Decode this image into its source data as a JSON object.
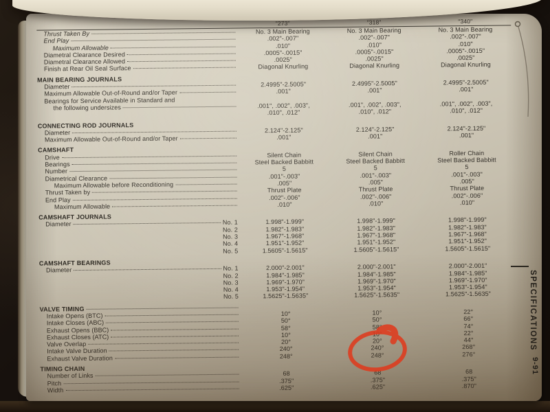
{
  "page": {
    "side_label": "SPECIFICATIONS",
    "page_number": "9-91"
  },
  "table": {
    "columns": [
      "\"273\"",
      "\"318\"",
      "\"340\""
    ],
    "sections": [
      {
        "title": null,
        "rows": [
          {
            "label": "Thrust Taken By",
            "italic": true,
            "dots": true,
            "values": [
              "No. 3 Main Bearing",
              "No. 3 Main Bearing",
              "No. 3 Main Bearing"
            ]
          },
          {
            "label": "End Play",
            "italic": true,
            "dots": true,
            "values": [
              ".002\"-.007\"",
              ".002\"-.007\"",
              ".002\"-.007\""
            ]
          },
          {
            "label": "Maximum Allowable",
            "italic": true,
            "indent": 2,
            "dots": true,
            "values": [
              ".010\"",
              ".010\"",
              ".010\""
            ]
          },
          {
            "label": "Diametral Clearance Desired",
            "dots": true,
            "values": [
              ".0005\"-.0015\"",
              ".0005\"-.0015\"",
              ".0005\"-.0015\""
            ]
          },
          {
            "label": "Diametral Clearance Allowed",
            "dots": true,
            "values": [
              ".0025\"",
              ".0025\"",
              ".0025\""
            ]
          },
          {
            "label": "Finish at Rear Oil Seal Surface",
            "dots": true,
            "values": [
              "Diagonal Knurling",
              "Diagonal Knurling",
              "Diagonal Knurling"
            ]
          }
        ]
      },
      {
        "title": "MAIN BEARING JOURNALS",
        "rows": [
          {
            "label": "Diameter",
            "dots": true,
            "values": [
              "2.4995\"-2.5005\"",
              "2.4995\"-2.5005\"",
              "2.4995\"-2.5005\""
            ]
          },
          {
            "label": "Maximum Allowable Out-of-Round and/or Taper",
            "dots": true,
            "values": [
              ".001\"",
              ".001\"",
              ".001\""
            ]
          },
          {
            "label": "Bearings for Service Available in Standard and",
            "dots": false,
            "values": [
              "",
              "",
              ""
            ]
          },
          {
            "label": "the following undersizes",
            "indent": 2,
            "dots": true,
            "twoline": true,
            "values": [
              ".001\", .002\", .003\",\n.010\", .012\"",
              ".001\", .002\", .003\",\n.010\", .012\"",
              ".001\", .002\", .003\",\n.010\", .012\""
            ]
          }
        ]
      },
      {
        "title": "CONNECTING ROD JOURNALS",
        "rows": [
          {
            "label": "Diameter",
            "dots": true,
            "values": [
              "2.124\"-2.125\"",
              "2.124\"-2.125\"",
              "2.124\"-2.125\""
            ]
          },
          {
            "label": "Maximum Allowable Out-of-Round and/or Taper",
            "dots": true,
            "values": [
              ".001\"",
              ".001\"",
              ".001\""
            ]
          }
        ]
      },
      {
        "title": "CAMSHAFT",
        "rows": [
          {
            "label": "Drive",
            "dots": true,
            "values": [
              "Silent Chain",
              "Silent Chain",
              "Roller Chain"
            ]
          },
          {
            "label": "Bearings",
            "dots": true,
            "values": [
              "Steel Backed Babbitt",
              "Steel Backed Babbitt",
              "Steel Backed Babbitt"
            ]
          },
          {
            "label": "Number",
            "dots": true,
            "values": [
              "5",
              "5",
              "5"
            ]
          },
          {
            "label": "Diametrical Clearance",
            "dots": true,
            "values": [
              ".001\"-.003\"",
              ".001\"-.003\"",
              ".001\"-.003\""
            ]
          },
          {
            "label": "Maximum Allowable before Reconditioning",
            "indent": 2,
            "dots": true,
            "values": [
              ".005\"",
              ".005\"",
              ".005\""
            ]
          },
          {
            "label": "Thrust Taken by",
            "dots": true,
            "values": [
              "Thrust Plate",
              "Thrust Plate",
              "Thrust Plate"
            ]
          },
          {
            "label": "End Play",
            "dots": true,
            "values": [
              ".002\"-.006\"",
              ".002\"-.006\"",
              ".002\"-.006\""
            ]
          },
          {
            "label": "Maximum Allowable",
            "indent": 2,
            "dots": true,
            "values": [
              ".010\"",
              ".010\"",
              ".010\""
            ]
          }
        ]
      },
      {
        "title": "CAMSHAFT JOURNALS",
        "rows": [
          {
            "label": "Diameter",
            "dots": true,
            "no": "No. 1",
            "values": [
              "1.998\"-1.999\"",
              "1.998\"-1.999\"",
              "1.998\"-1.999\""
            ]
          },
          {
            "label": "",
            "dots": false,
            "no": "No. 2",
            "values": [
              "1.982\"-1.983\"",
              "1.982\"-1.983\"",
              "1.982\"-1.983\""
            ]
          },
          {
            "label": "",
            "dots": false,
            "no": "No. 3",
            "values": [
              "1.967\"-1.968\"",
              "1.967\"-1.968\"",
              "1.967\"-1.968\""
            ]
          },
          {
            "label": "",
            "dots": false,
            "no": "No. 4",
            "values": [
              "1.951\"-1.952\"",
              "1.951\"-1.952\"",
              "1.951\"-1.952\""
            ]
          },
          {
            "label": "",
            "dots": false,
            "no": "No. 5",
            "values": [
              "1.5605\"-1.5615\"",
              "1.5605\"-1.5615\"",
              "1.5605\"-1.5615\""
            ]
          }
        ]
      },
      {
        "title": "CAMSHAFT BEARINGS",
        "rows": [
          {
            "label": "Diameter",
            "dots": true,
            "no": "No. 1",
            "values": [
              "2.000\"-2.001\"",
              "2.000\"-2.001\"",
              "2.000\"-2.001\""
            ]
          },
          {
            "label": "",
            "dots": false,
            "no": "No. 2",
            "values": [
              "1.984\"-1.985\"",
              "1.984\"-1.985\"",
              "1.984\"-1.985\""
            ]
          },
          {
            "label": "",
            "dots": false,
            "no": "No. 3",
            "values": [
              "1.969\"-1.970\"",
              "1.969\"-1.970\"",
              "1.969\"-1.970\""
            ]
          },
          {
            "label": "",
            "dots": false,
            "no": "No. 4",
            "values": [
              "1.953\"-1.954\"",
              "1.953\"-1.954\"",
              "1.953\"-1.954\""
            ]
          },
          {
            "label": "",
            "dots": false,
            "no": "No. 5",
            "values": [
              "1.5625\"-1.5635\"",
              "1.5625\"-1.5635\"",
              "1.5625\"-1.5635\""
            ]
          }
        ]
      },
      {
        "title": "VALVE TIMING",
        "title_dots": true,
        "rows": [
          {
            "label": "Intake Opens (BTC)",
            "dots": true,
            "values": [
              "10°",
              "10°",
              "22°"
            ]
          },
          {
            "label": "Intake Closes (ABC)",
            "dots": true,
            "values": [
              "50°",
              "50°",
              "66°"
            ]
          },
          {
            "label": "Exhaust Opens (BBC)",
            "dots": true,
            "values": [
              "58°",
              "58°",
              "74°"
            ]
          },
          {
            "label": "Exhaust Closes (ATC)",
            "dots": true,
            "values": [
              "10°",
              "10°",
              "22°"
            ]
          },
          {
            "label": "Valve Overlap",
            "dots": true,
            "values": [
              "20°",
              "20°",
              "44°"
            ]
          },
          {
            "label": "Intake Valve Duration",
            "dots": true,
            "values": [
              "240°",
              "240°",
              "268°"
            ]
          },
          {
            "label": "Exhaust Valve Duration",
            "dots": true,
            "values": [
              "248°",
              "248°",
              "276°"
            ]
          }
        ]
      },
      {
        "title": "TIMING CHAIN",
        "rows": [
          {
            "label": "Number of Links",
            "dots": true,
            "values": [
              "68",
              "68",
              "68"
            ]
          },
          {
            "label": "Pitch",
            "dots": true,
            "values": [
              ".375\"",
              ".375\"",
              ".375\""
            ]
          },
          {
            "label": "Width",
            "dots": true,
            "values": [
              ".625\"",
              ".625\"",
              ".870\""
            ]
          }
        ]
      }
    ]
  },
  "annotation": {
    "shape": "hand-drawn circle",
    "color": "#df3b1e",
    "column": "\"318\"",
    "circled_values": [
      "240°",
      "248°"
    ]
  },
  "colors": {
    "page_paper": "#cdc6b6",
    "background": "#17110d",
    "ink": "#312d27",
    "annotation_red": "#df3b1e"
  }
}
